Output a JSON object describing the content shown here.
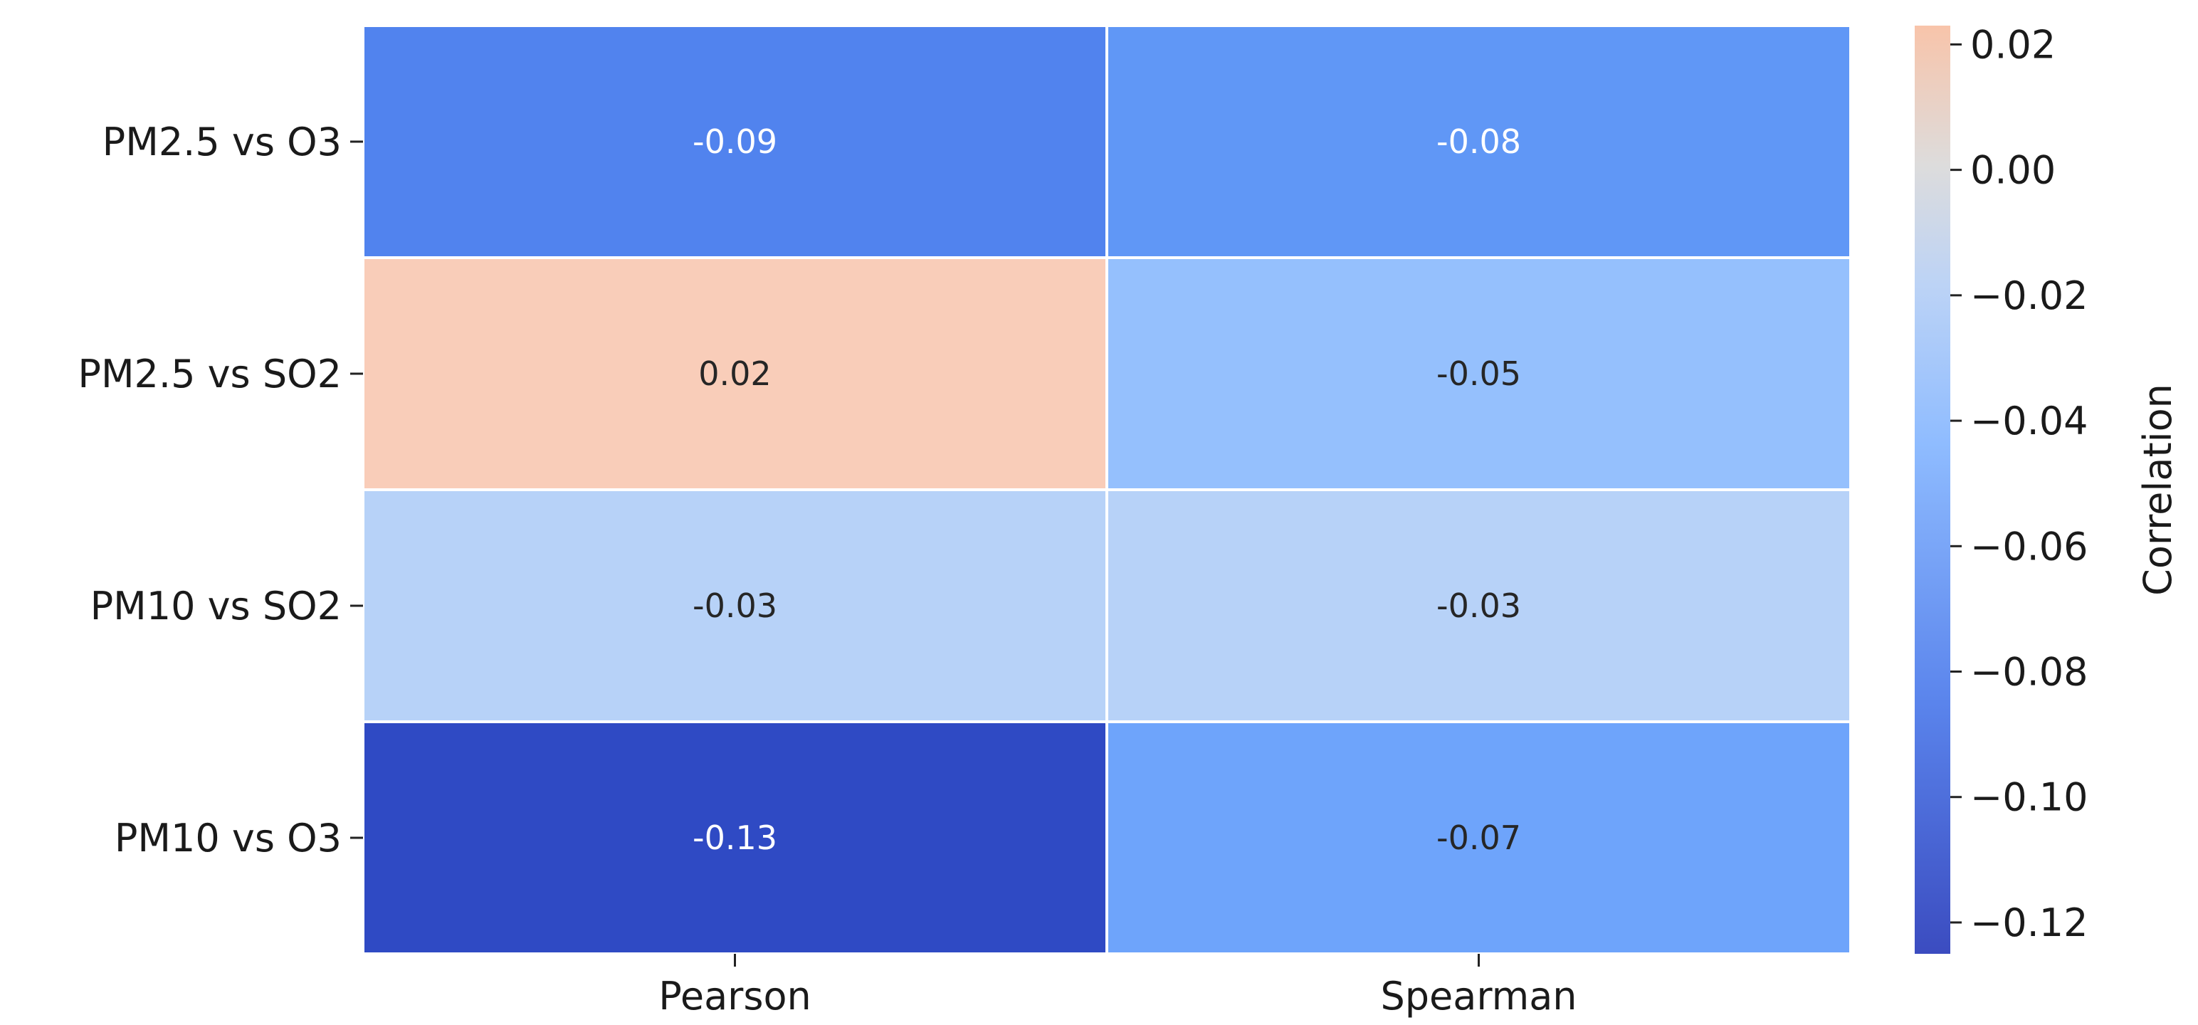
{
  "chart_data": {
    "type": "heatmap",
    "rows": [
      "PM2.5 vs O3",
      "PM2.5 vs SO2",
      "PM10 vs SO2",
      "PM10 vs O3"
    ],
    "columns": [
      "Pearson",
      "Spearman"
    ],
    "values": [
      [
        -0.09,
        -0.08
      ],
      [
        0.02,
        -0.05
      ],
      [
        -0.03,
        -0.03
      ],
      [
        -0.13,
        -0.07
      ]
    ],
    "cell_labels": [
      [
        "-0.09",
        "-0.08"
      ],
      [
        "0.02",
        "-0.05"
      ],
      [
        "-0.03",
        "-0.03"
      ],
      [
        "-0.13",
        "-0.07"
      ]
    ],
    "colormap": "coolwarm",
    "colorbar": {
      "label": "Correlation",
      "range": [
        -0.125,
        0.023
      ],
      "ticks": [
        0.02,
        0.0,
        -0.02,
        -0.04,
        -0.06,
        -0.08,
        -0.1,
        -0.12
      ],
      "tick_labels": [
        "0.02",
        "0.00",
        "−0.02",
        "−0.04",
        "−0.06",
        "−0.08",
        "−0.10",
        "−0.12"
      ]
    },
    "colors": {
      "-0.13": "#2f4ac4",
      "-0.09": "#5183ee",
      "-0.08": "#6097f6",
      "-0.07": "#6ea4fb",
      "-0.05": "#95c0fd",
      "-0.03": "#b7d2f8",
      "0.02": "#f9cdb9"
    }
  }
}
